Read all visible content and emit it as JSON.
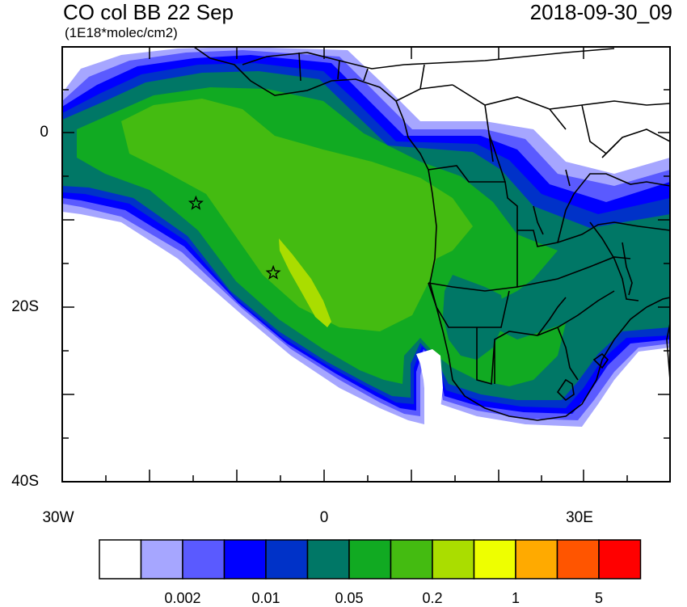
{
  "header": {
    "title": "CO col BB 22 Sep",
    "units": "(1E18*molec/cm2)",
    "timestamp": "2018-09-30_09"
  },
  "axes": {
    "lat_labels": [
      "0",
      "20S",
      "40S"
    ],
    "lon_labels": [
      "30W",
      "0",
      "30E"
    ],
    "lat_range": [
      -40,
      10
    ],
    "lon_range": [
      -30,
      40
    ]
  },
  "colorbar": {
    "colors": [
      "#ffffff",
      "#a6a6ff",
      "#5a5aff",
      "#0000ff",
      "#0032c8",
      "#007766",
      "#11aa22",
      "#44bb11",
      "#aadd00",
      "#eeff00",
      "#ffaa00",
      "#ff5500",
      "#ff0000"
    ],
    "labels": [
      "0.002",
      "0.01",
      "0.05",
      "0.2",
      "1",
      "5"
    ]
  },
  "markers": [
    {
      "name": "star-marker-north",
      "lon": -14.6,
      "lat": -8
    },
    {
      "name": "star-marker-south",
      "lon": -5.7,
      "lat": -16
    }
  ]
}
